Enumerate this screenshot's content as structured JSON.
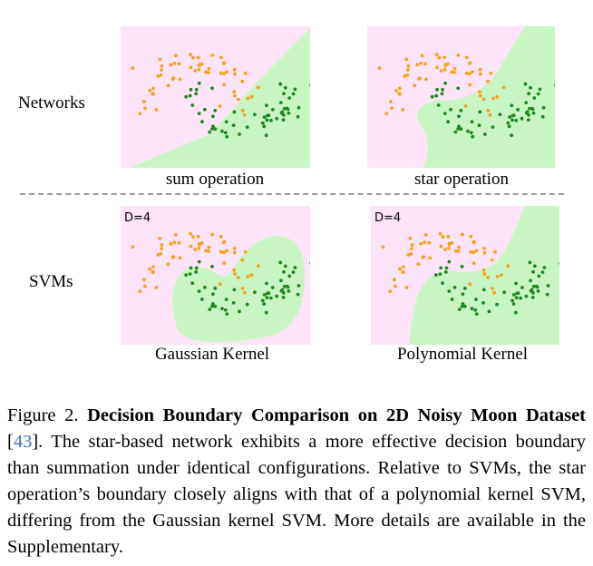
{
  "rows": {
    "networks": "Networks",
    "svms": "SVMs"
  },
  "panels": [
    {
      "id": "sum",
      "caption": "sum operation",
      "label": ""
    },
    {
      "id": "star",
      "caption": "star operation",
      "label": ""
    },
    {
      "id": "gauss",
      "caption": "Gaussian Kernel",
      "label": "D=4"
    },
    {
      "id": "poly",
      "caption": "Polynomial Kernel",
      "label": "D=4"
    }
  ],
  "colors": {
    "pink": "#fde4f8",
    "green": "#c9f5c4",
    "orange": "#f7a21b",
    "darkgreen": "#1d8a1d"
  },
  "figure": {
    "number": "Figure 2.",
    "title": "Decision Boundary Comparison on 2D Noisy Moon Dataset",
    "ref_open": "[",
    "ref": "43",
    "ref_close": "].",
    "body": "The star-based network exhibits a more effective decision boundary than summation under identical configurations. Relative to SVMs, the star operation’s boundary closely aligns with that of a polynomial kernel SVM, differing from the Gaussian kernel SVM. More details are available in the Supplementary."
  }
}
